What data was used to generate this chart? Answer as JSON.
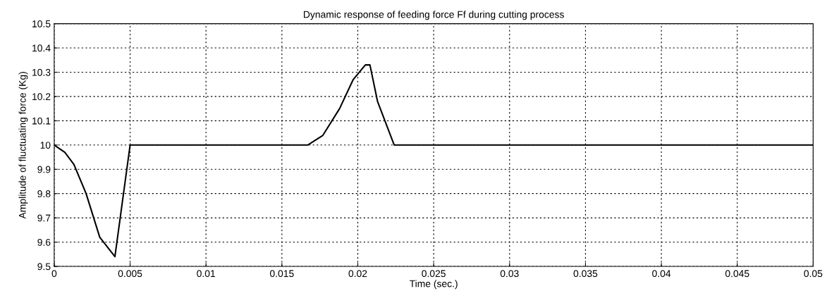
{
  "chart_data": {
    "type": "line",
    "title": "Dynamic response of feeding force Ff during cutting process",
    "xlabel": "Time (sec.)",
    "ylabel": "Amplitude of fluctuating force (Kg)",
    "series": [
      {
        "color": "#000000",
        "x": [
          0,
          0.0007,
          0.0013,
          0.0021,
          0.003,
          0.004,
          0.005,
          0.01,
          0.015,
          0.0167,
          0.0177,
          0.0188,
          0.0197,
          0.0205,
          0.0208,
          0.0213,
          0.0224,
          0.03,
          0.04,
          0.05
        ],
        "values": [
          10.0,
          9.97,
          9.92,
          9.8,
          9.62,
          9.54,
          10.0,
          10.0,
          10.0,
          10.0,
          10.04,
          10.15,
          10.27,
          10.33,
          10.33,
          10.18,
          10.0,
          10.0,
          10.0,
          10.0
        ]
      }
    ],
    "xlim": [
      0,
      0.05
    ],
    "xticks": [
      0,
      0.005,
      0.01,
      0.015,
      0.02,
      0.025,
      0.03,
      0.035,
      0.04,
      0.045,
      0.05
    ],
    "ylim": [
      9.5,
      10.5
    ],
    "yticks": [
      9.5,
      9.6,
      9.7,
      9.8,
      9.9,
      10,
      10.1,
      10.2,
      10.3,
      10.4,
      10.5
    ],
    "grid": true,
    "line_style": "solid",
    "marker": "none"
  }
}
